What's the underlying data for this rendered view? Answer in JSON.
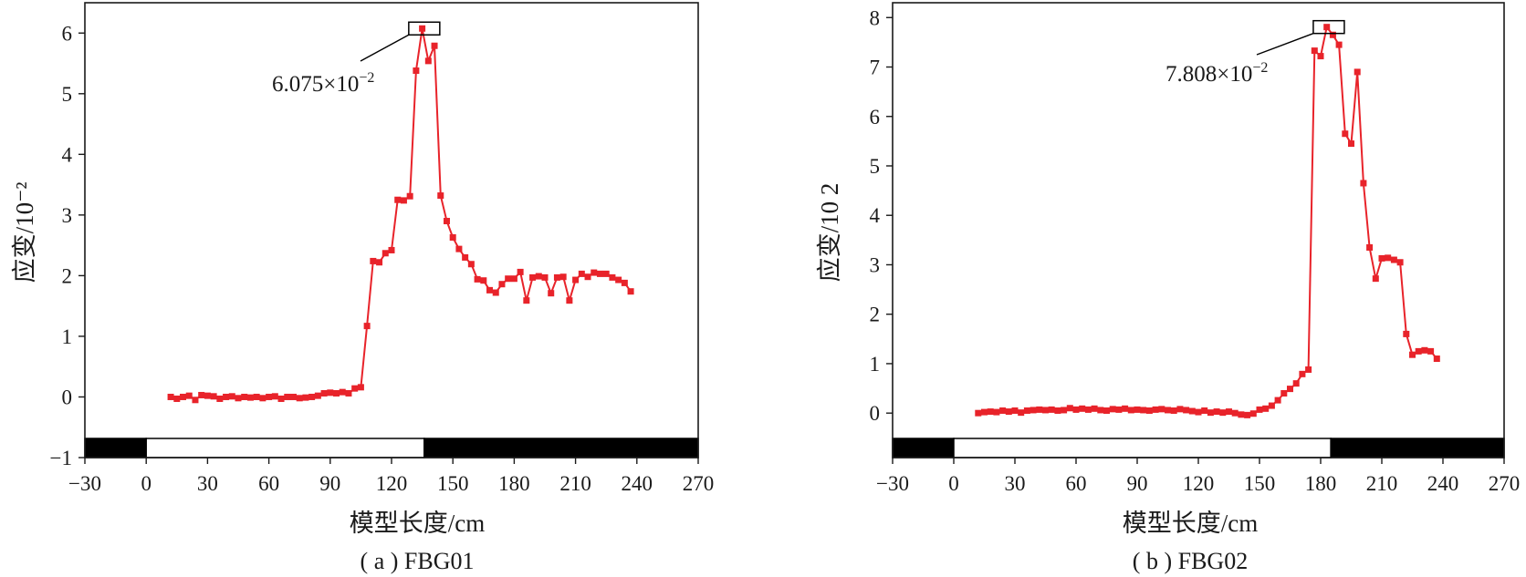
{
  "chart_data": [
    {
      "type": "line",
      "caption": "( a ) FBG01",
      "xlabel": "模型长度/cm",
      "ylabel": "应变/10⁻²",
      "xlim": [
        -30,
        270
      ],
      "ylim": [
        -1,
        6.5
      ],
      "xticks": [
        -30,
        0,
        30,
        60,
        90,
        120,
        150,
        180,
        210,
        240,
        270
      ],
      "yticks": [
        -1,
        0,
        1,
        2,
        3,
        4,
        5,
        6
      ],
      "xtick_labels": [
        "−30",
        "0",
        "30",
        "60",
        "90",
        "120",
        "150",
        "180",
        "210",
        "240",
        "270"
      ],
      "ytick_labels": [
        "−1",
        "0",
        "1",
        "2",
        "3",
        "4",
        "5",
        "6"
      ],
      "grid": false,
      "series_color": "#e8232a",
      "annotation": {
        "text_main": "6.075×10",
        "text_sup": "−2",
        "x": 136,
        "y": 6.075
      },
      "model_bar": [
        {
          "from": -30,
          "to": 0,
          "fill": "black"
        },
        {
          "from": 0,
          "to": 136,
          "fill": "white"
        },
        {
          "from": 136,
          "to": 270,
          "fill": "black"
        }
      ],
      "x": [
        12,
        15,
        18,
        21,
        24,
        27,
        30,
        33,
        36,
        39,
        42,
        45,
        48,
        51,
        54,
        57,
        60,
        63,
        66,
        69,
        72,
        75,
        78,
        81,
        84,
        87,
        90,
        93,
        96,
        99,
        102,
        105,
        108,
        111,
        114,
        117,
        120,
        123,
        126,
        129,
        132,
        135,
        138,
        141,
        144,
        147,
        150,
        153,
        156,
        159,
        162,
        165,
        168,
        171,
        174,
        177,
        180,
        183,
        186,
        189,
        192,
        195,
        198,
        201,
        204,
        207,
        210,
        213,
        216,
        219,
        222,
        225,
        228,
        231,
        234,
        237
      ],
      "y": [
        0.0,
        -0.03,
        0.0,
        0.02,
        -0.05,
        0.03,
        0.02,
        0.01,
        -0.03,
        0.0,
        0.01,
        -0.02,
        0.0,
        -0.01,
        0.0,
        -0.02,
        0.0,
        0.01,
        -0.03,
        0.0,
        0.0,
        -0.02,
        -0.01,
        0.0,
        0.02,
        0.06,
        0.07,
        0.06,
        0.08,
        0.06,
        0.14,
        0.16,
        1.17,
        2.24,
        2.22,
        2.37,
        2.42,
        3.25,
        3.24,
        3.31,
        5.38,
        6.075,
        5.54,
        5.79,
        3.32,
        2.9,
        2.63,
        2.44,
        2.3,
        2.19,
        1.94,
        1.92,
        1.76,
        1.72,
        1.86,
        1.95,
        1.95,
        2.06,
        1.59,
        1.97,
        1.99,
        1.97,
        1.71,
        1.97,
        1.98,
        1.59,
        1.93,
        2.03,
        1.98,
        2.05,
        2.03,
        2.03,
        1.97,
        1.93,
        1.88,
        1.74
      ]
    },
    {
      "type": "line",
      "caption": "( b ) FBG02",
      "xlabel": "模型长度/cm",
      "ylabel": "应变/10 2",
      "xlim": [
        -30,
        270
      ],
      "ylim": [
        -0.9,
        8.3
      ],
      "xticks": [
        -30,
        0,
        30,
        60,
        90,
        120,
        150,
        180,
        210,
        240,
        270
      ],
      "yticks": [
        -1,
        0,
        1,
        2,
        3,
        4,
        5,
        6,
        7,
        8
      ],
      "xtick_labels": [
        "−30",
        "0",
        "30",
        "60",
        "90",
        "120",
        "150",
        "180",
        "210",
        "240",
        "270"
      ],
      "ytick_labels": [
        "−1",
        "0",
        "1",
        "2",
        "3",
        "4",
        "5",
        "6",
        "7",
        "8"
      ],
      "grid": false,
      "series_color": "#e8232a",
      "annotation": {
        "text_main": "7.808×10",
        "text_sup": "−2",
        "x": 184,
        "y": 7.808
      },
      "model_bar": [
        {
          "from": -30,
          "to": 0,
          "fill": "black"
        },
        {
          "from": 0,
          "to": 185,
          "fill": "white"
        },
        {
          "from": 185,
          "to": 270,
          "fill": "black"
        }
      ],
      "x": [
        12,
        15,
        18,
        21,
        24,
        27,
        30,
        33,
        36,
        39,
        42,
        45,
        48,
        51,
        54,
        57,
        60,
        63,
        66,
        69,
        72,
        75,
        78,
        81,
        84,
        87,
        90,
        93,
        96,
        99,
        102,
        105,
        108,
        111,
        114,
        117,
        120,
        123,
        126,
        129,
        132,
        135,
        138,
        141,
        144,
        147,
        150,
        153,
        156,
        159,
        162,
        165,
        168,
        171,
        174,
        177,
        180,
        183,
        186,
        189,
        192,
        195,
        198,
        201,
        204,
        207,
        210,
        213,
        216,
        219,
        222,
        225,
        228,
        231,
        234,
        237
      ],
      "y": [
        0.0,
        0.02,
        0.03,
        0.02,
        0.05,
        0.03,
        0.05,
        0.01,
        0.05,
        0.06,
        0.07,
        0.06,
        0.07,
        0.05,
        0.06,
        0.1,
        0.07,
        0.09,
        0.07,
        0.09,
        0.06,
        0.05,
        0.08,
        0.07,
        0.09,
        0.06,
        0.07,
        0.06,
        0.05,
        0.07,
        0.08,
        0.06,
        0.05,
        0.08,
        0.06,
        0.04,
        0.02,
        0.05,
        0.01,
        0.03,
        0.01,
        0.03,
        0.0,
        -0.03,
        -0.04,
        -0.01,
        0.07,
        0.09,
        0.15,
        0.26,
        0.4,
        0.49,
        0.6,
        0.79,
        0.88,
        7.33,
        7.22,
        7.808,
        7.65,
        7.45,
        5.65,
        5.45,
        6.9,
        4.65,
        3.35,
        2.72,
        3.13,
        3.14,
        3.1,
        3.05,
        1.6,
        1.18,
        1.25,
        1.27,
        1.25,
        1.1
      ]
    }
  ]
}
